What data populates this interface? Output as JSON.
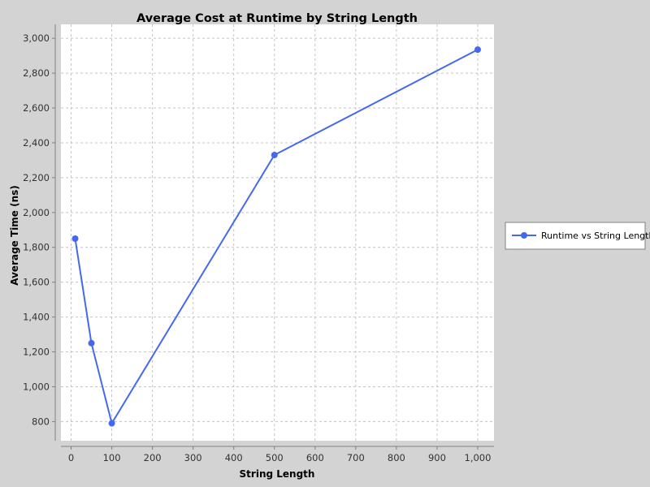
{
  "chart_data": {
    "type": "line",
    "title": "Average Cost at Runtime by String Length",
    "xlabel": "String Length",
    "ylabel": "Average Time (ns)",
    "xlim": [
      -25,
      1040
    ],
    "ylim": [
      690,
      3080
    ],
    "x_ticks": [
      0,
      100,
      200,
      300,
      400,
      500,
      600,
      700,
      800,
      900,
      1000
    ],
    "x_tick_labels": [
      "0",
      "100",
      "200",
      "300",
      "400",
      "500",
      "600",
      "700",
      "800",
      "900",
      "1,000"
    ],
    "y_ticks": [
      800,
      1000,
      1200,
      1400,
      1600,
      1800,
      2000,
      2200,
      2400,
      2600,
      2800,
      3000
    ],
    "y_tick_labels": [
      "800",
      "1,000",
      "1,200",
      "1,400",
      "1,600",
      "1,800",
      "2,000",
      "2,200",
      "2,400",
      "2,600",
      "2,800",
      "3,000"
    ],
    "grid": true,
    "legend_position": "right",
    "series": [
      {
        "name": "Runtime vs String Length",
        "color": "#4469f0",
        "x": [
          10,
          50,
          100,
          500,
          1000
        ],
        "y": [
          1850,
          1250,
          790,
          2330,
          2935
        ]
      }
    ]
  }
}
